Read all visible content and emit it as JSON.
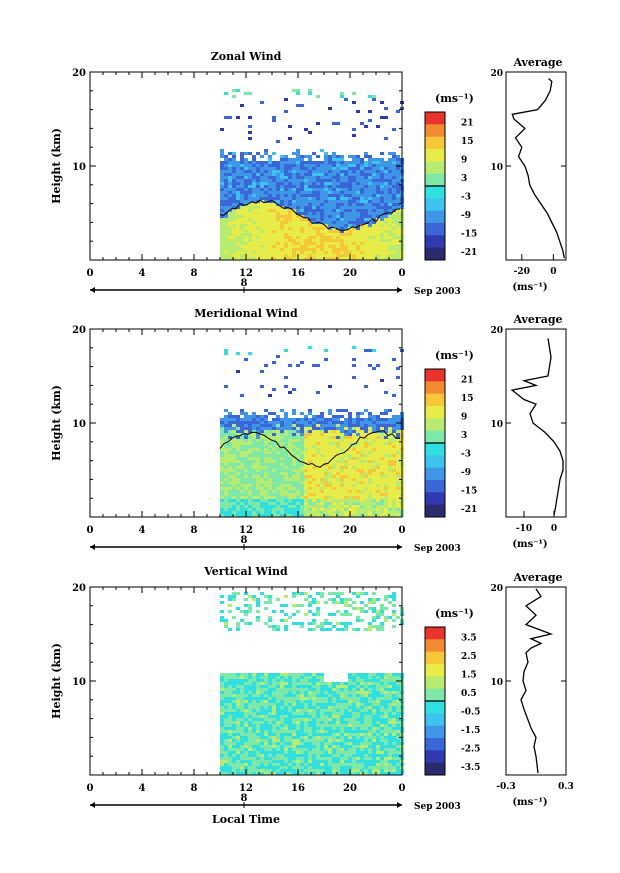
{
  "figure": {
    "date_label": "Sep 2003",
    "day_label": "8",
    "x_ticks": [
      "0",
      "4",
      "8",
      "12",
      "16",
      "20",
      "0"
    ],
    "xlabel": "Local Time",
    "ylabel": "Height (km)",
    "y_ticks": [
      "20",
      "10"
    ],
    "unit_label": "(ms⁻¹)",
    "avg_title": "Average",
    "avg_xunit": "(ms⁻¹)"
  },
  "chart_data": [
    {
      "type": "heatmap",
      "title": "Zonal Wind",
      "xlabel": "",
      "ylabel": "Height (km)",
      "x_range_hours": [
        0,
        24
      ],
      "ylim": [
        0,
        20
      ],
      "data_start_hour": 10,
      "colorbar": {
        "label": "(ms⁻¹)",
        "ticks": [
          "21",
          "15",
          "9",
          "3",
          "-3",
          "-9",
          "-15",
          "-21"
        ],
        "range": [
          -24,
          24
        ]
      },
      "description_values": {
        "low_levels_0_5km": [
          3,
          12
        ],
        "upper_levels_5_12km": [
          -15,
          -3
        ],
        "sparse_14_18km": [
          -24,
          -15
        ]
      }
    },
    {
      "type": "line",
      "title": "Average",
      "x_ticks": [
        "-20",
        "0"
      ],
      "xlim": [
        -30,
        8
      ],
      "ylim": [
        0,
        20
      ],
      "xlabel": "(ms⁻¹)",
      "series": [
        {
          "x": [
            7,
            6,
            4,
            2,
            -1,
            -4,
            -8,
            -12,
            -15,
            -16,
            -18,
            -22,
            -20,
            -24,
            -18,
            -25,
            -26,
            -10,
            -5,
            -2,
            -1,
            -3
          ],
          "y": [
            0.2,
            1,
            2,
            3,
            4,
            5,
            6,
            7,
            8,
            9,
            10,
            11,
            12,
            13,
            14,
            15,
            15.5,
            16,
            17,
            18,
            19,
            19.3
          ]
        }
      ]
    },
    {
      "type": "heatmap",
      "title": "Meridional Wind",
      "xlabel": "",
      "ylabel": "Height (km)",
      "x_range_hours": [
        0,
        24
      ],
      "ylim": [
        0,
        20
      ],
      "data_start_hour": 10,
      "colorbar": {
        "label": "(ms⁻¹)",
        "ticks": [
          "21",
          "15",
          "9",
          "3",
          "-3",
          "-9",
          "-15",
          "-21"
        ],
        "range": [
          -24,
          24
        ]
      },
      "description_values": {
        "low_levels_0_8km": [
          -3,
          9
        ],
        "upper_levels_8_12km": [
          -15,
          -3
        ]
      }
    },
    {
      "type": "line",
      "title": "Average",
      "x_ticks": [
        "-10",
        "0"
      ],
      "xlim": [
        -16,
        4
      ],
      "ylim": [
        0,
        20
      ],
      "xlabel": "(ms⁻¹)",
      "series": [
        {
          "x": [
            0,
            0.5,
            1,
            1.5,
            2,
            3,
            3,
            2,
            0,
            -3,
            -7,
            -8,
            -6,
            -10,
            -12,
            -14,
            -6,
            -10,
            -2,
            -1,
            -2
          ],
          "y": [
            0.2,
            1,
            2,
            3,
            4,
            5,
            6,
            7,
            8,
            9,
            10,
            11,
            12,
            12.5,
            13,
            13.5,
            14,
            14.5,
            15,
            17,
            19
          ]
        }
      ]
    },
    {
      "type": "heatmap",
      "title": "Vertical Wind",
      "xlabel": "Local Time",
      "ylabel": "Height (km)",
      "x_range_hours": [
        0,
        24
      ],
      "ylim": [
        0,
        20
      ],
      "data_start_hour": 10,
      "colorbar": {
        "label": "(ms⁻¹)",
        "ticks": [
          "3.5",
          "2.5",
          "1.5",
          "0.5",
          "-0.5",
          "-1.5",
          "-2.5",
          "-3.5"
        ],
        "range": [
          -4,
          4
        ]
      },
      "description_values": {
        "dominant_range": [
          -0.5,
          0.5
        ]
      }
    },
    {
      "type": "line",
      "title": "Average",
      "x_ticks": [
        "-0.3",
        "0.3"
      ],
      "xlim": [
        -0.3,
        0.3
      ],
      "ylim": [
        0,
        20
      ],
      "xlabel": "(ms⁻¹)",
      "series": [
        {
          "x": [
            0.02,
            0.0,
            -0.02,
            0.0,
            -0.05,
            -0.12,
            -0.15,
            -0.1,
            -0.13,
            -0.12,
            -0.08,
            -0.1,
            -0.05,
            0.05,
            -0.05,
            0.15,
            -0.1,
            0.0,
            -0.1,
            0.05,
            0.0
          ],
          "y": [
            0.2,
            2,
            3,
            4,
            5,
            7,
            8,
            9,
            10,
            11,
            12,
            13,
            13.5,
            14,
            14.5,
            15,
            16,
            17,
            18,
            19,
            19.8
          ]
        }
      ]
    },
    {
      "colors": {
        "scale": [
          "#2a2a6e",
          "#2f3ab0",
          "#3a66d8",
          "#3f96e6",
          "#3cc4ee",
          "#30e0e0",
          "#7ee8a8",
          "#b8ec70",
          "#e8ec48",
          "#f6c838",
          "#f28a32",
          "#e8342c"
        ]
      }
    }
  ]
}
